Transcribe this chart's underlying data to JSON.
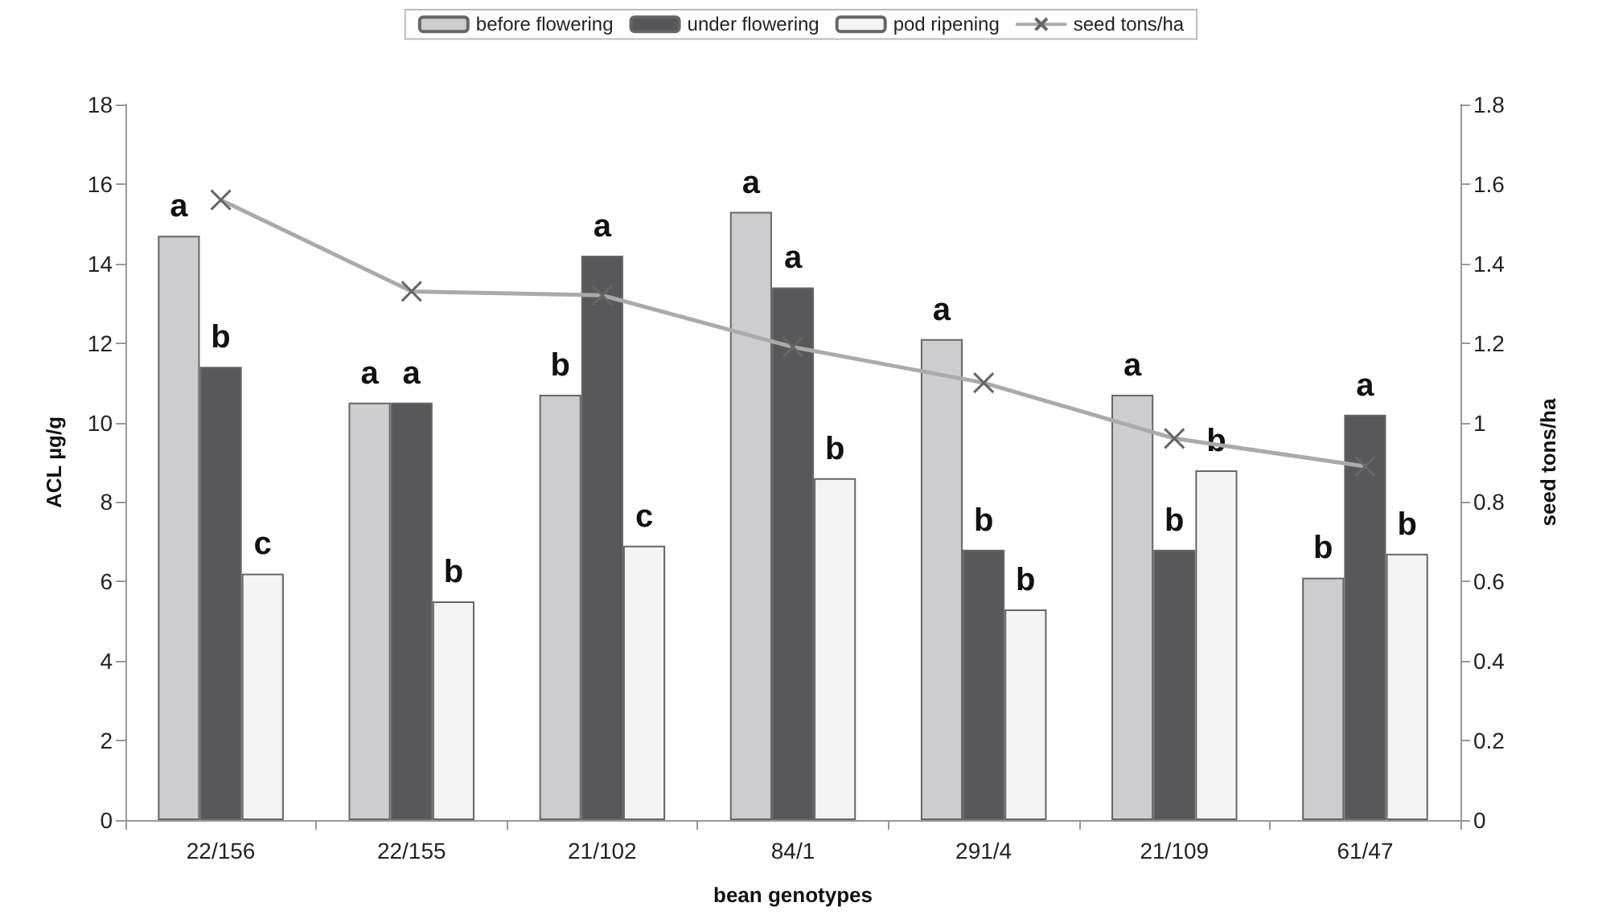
{
  "chart_data": {
    "type": "bar",
    "xlabel": "bean genotypes",
    "ylabel": "ACL µg/g",
    "y2label": "seed tons/ha",
    "categories": [
      "22/156",
      "22/155",
      "21/102",
      "84/1",
      "291/4",
      "21/109",
      "61/47"
    ],
    "series": [
      {
        "name": "before flowering",
        "color": "#cdcdcf",
        "values": [
          14.7,
          10.5,
          10.7,
          15.3,
          12.1,
          10.7,
          6.1
        ],
        "value_labels": [
          "a",
          "a",
          "b",
          "a",
          "a",
          "a",
          "b"
        ]
      },
      {
        "name": "under flowering",
        "color": "#58585a",
        "values": [
          11.4,
          10.5,
          14.2,
          13.4,
          6.8,
          6.8,
          10.2
        ],
        "value_labels": [
          "b",
          "a",
          "a",
          "a",
          "b",
          "b",
          "a"
        ]
      },
      {
        "name": "pod ripening",
        "color": "#f4f4f4",
        "values": [
          6.2,
          5.5,
          6.9,
          8.6,
          5.3,
          8.8,
          6.7
        ],
        "value_labels": [
          "c",
          "b",
          "c",
          "b",
          "b",
          "b",
          "b"
        ]
      },
      {
        "name": "seed tons/ha",
        "type": "line",
        "axis": "y2",
        "color": "#aaaaaa",
        "marker": "cross",
        "values": [
          1.56,
          1.33,
          1.32,
          1.19,
          1.1,
          0.96,
          0.89
        ]
      }
    ],
    "ylim": [
      0,
      18
    ],
    "yticks": [
      0,
      2,
      4,
      6,
      8,
      10,
      12,
      14,
      16,
      18
    ],
    "y2lim": [
      0,
      1.8
    ],
    "y2ticks": [
      0,
      0.2,
      0.4,
      0.6,
      0.8,
      1,
      1.2,
      1.4,
      1.6,
      1.8
    ],
    "grid": false,
    "legend": "top"
  }
}
